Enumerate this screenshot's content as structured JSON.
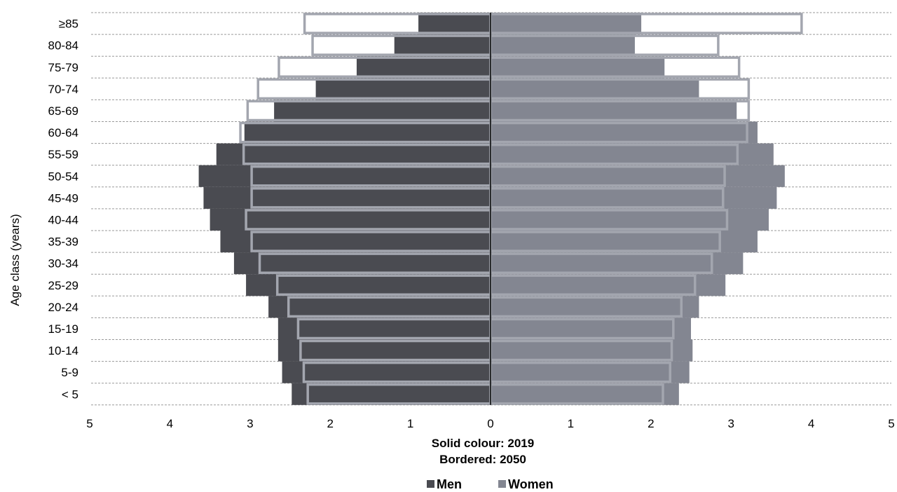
{
  "chart_data": {
    "type": "bar",
    "orientation": "horizontal-pyramid",
    "categories": [
      "< 5",
      "5-9",
      "10-14",
      "15-19",
      "20-24",
      "25-29",
      "30-34",
      "35-39",
      "40-44",
      "45-49",
      "50-54",
      "55-59",
      "60-64",
      "65-69",
      "70-74",
      "75-79",
      "80-84",
      "≥85"
    ],
    "series": [
      {
        "name": "Men",
        "year": "2019",
        "style": "solid",
        "color": "#4a4b51",
        "values": [
          2.48,
          2.6,
          2.65,
          2.65,
          2.77,
          3.05,
          3.2,
          3.37,
          3.5,
          3.58,
          3.64,
          3.42,
          3.07,
          2.7,
          2.18,
          1.67,
          1.2,
          0.9
        ]
      },
      {
        "name": "Women",
        "year": "2019",
        "style": "solid",
        "color": "#838691",
        "values": [
          2.35,
          2.48,
          2.52,
          2.5,
          2.6,
          2.93,
          3.15,
          3.33,
          3.47,
          3.57,
          3.67,
          3.53,
          3.33,
          3.07,
          2.6,
          2.17,
          1.8,
          1.88
        ]
      },
      {
        "name": "Men",
        "year": "2050",
        "style": "bordered",
        "color": "#a3a6af",
        "values": [
          2.28,
          2.33,
          2.37,
          2.4,
          2.52,
          2.66,
          2.88,
          2.98,
          3.05,
          2.98,
          2.98,
          3.08,
          3.12,
          3.03,
          2.9,
          2.64,
          2.22,
          2.32
        ]
      },
      {
        "name": "Women",
        "year": "2050",
        "style": "bordered",
        "color": "#a3a6af",
        "values": [
          2.15,
          2.24,
          2.26,
          2.28,
          2.38,
          2.55,
          2.76,
          2.86,
          2.95,
          2.9,
          2.92,
          3.08,
          3.2,
          3.22,
          3.22,
          3.1,
          2.84,
          3.88
        ]
      }
    ],
    "xlim": [
      -5,
      5
    ],
    "xticks": [
      "5",
      "4",
      "3",
      "2",
      "1",
      "0",
      "1",
      "2",
      "3",
      "4",
      "5"
    ],
    "ylabel": "Age class (years)",
    "xlabel_lines": [
      "Solid colour: 2019",
      "Bordered: 2050"
    ],
    "legend": [
      {
        "label": "Men",
        "color": "#4a4b51"
      },
      {
        "label": "Women",
        "color": "#838691"
      }
    ],
    "legend_position": "bottom",
    "grid": "dashed-horizontal"
  }
}
